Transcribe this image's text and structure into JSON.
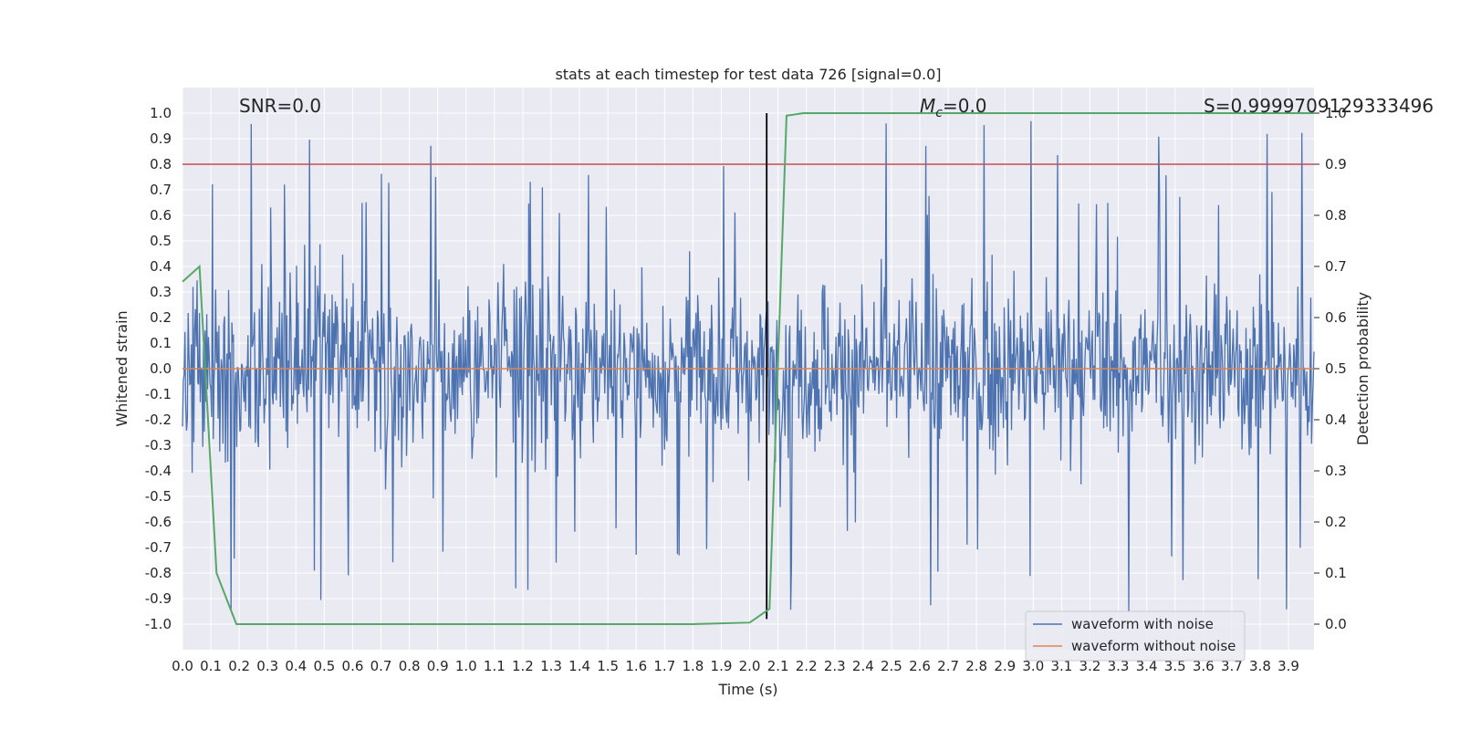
{
  "chart_data": {
    "type": "line",
    "title": "stats at each timestep for test data 726 [signal=0.0]",
    "xlabel": "Time (s)",
    "ylabel": "Whitened strain",
    "y2label": "Detection probability",
    "xlim": [
      0.0,
      3.99
    ],
    "ylim": [
      -1.1,
      1.1
    ],
    "y2lim": [
      -0.05,
      1.05
    ],
    "grid": true,
    "legend_position": "lower-right",
    "x_ticks": [
      "0.0",
      "0.1",
      "0.2",
      "0.3",
      "0.4",
      "0.5",
      "0.6",
      "0.7",
      "0.8",
      "0.9",
      "1.0",
      "1.1",
      "1.2",
      "1.3",
      "1.4",
      "1.5",
      "1.6",
      "1.7",
      "1.8",
      "1.9",
      "2.0",
      "2.1",
      "2.2",
      "2.3",
      "2.4",
      "2.5",
      "2.6",
      "2.7",
      "2.8",
      "2.9",
      "3.0",
      "3.1",
      "3.2",
      "3.3",
      "3.4",
      "3.5",
      "3.6",
      "3.7",
      "3.8",
      "3.9"
    ],
    "y_ticks": [
      "1.0",
      "0.9",
      "0.8",
      "0.7",
      "0.6",
      "0.5",
      "0.4",
      "0.3",
      "0.2",
      "0.1",
      "0.0",
      "-0.1",
      "-0.2",
      "-0.3",
      "-0.4",
      "-0.5",
      "-0.6",
      "-0.7",
      "-0.8",
      "-0.9",
      "-1.0"
    ],
    "y2_ticks": [
      "1.0",
      "0.9",
      "0.8",
      "0.7",
      "0.6",
      "0.5",
      "0.4",
      "0.3",
      "0.2",
      "0.1",
      "0.0"
    ],
    "annotations": {
      "snr": "SNR=0.0",
      "mc_symbol": "M",
      "mc_sub": "c",
      "mc_value": "=0.0",
      "s_value": "S=0.9999709129333496"
    },
    "series": [
      {
        "name": "waveform with noise",
        "color": "#4c72b0",
        "description": "whitened noise, approximately uniform amplitude",
        "typical_range": [
          -0.4,
          0.4
        ],
        "peak_range": [
          -0.95,
          1.0
        ]
      },
      {
        "name": "waveform without noise",
        "color": "#dd8452",
        "x": [
          0.0,
          3.99
        ],
        "y": [
          0.0,
          0.0
        ]
      },
      {
        "color": "#55a868",
        "axis": "right",
        "x": [
          0.0,
          0.06,
          0.12,
          0.19,
          1.0,
          1.8,
          2.0,
          2.07,
          2.13,
          2.19,
          3.99
        ],
        "y": [
          0.67,
          0.7,
          0.1,
          0.0,
          0.0,
          0.0,
          0.003,
          0.03,
          0.995,
          1.0,
          1.0
        ]
      }
    ],
    "reference_lines": [
      {
        "orientation": "horizontal",
        "axis": "left",
        "y": 0.8,
        "color": "#c44e52"
      },
      {
        "orientation": "vertical",
        "x": 2.06,
        "color": "#000000"
      }
    ]
  }
}
